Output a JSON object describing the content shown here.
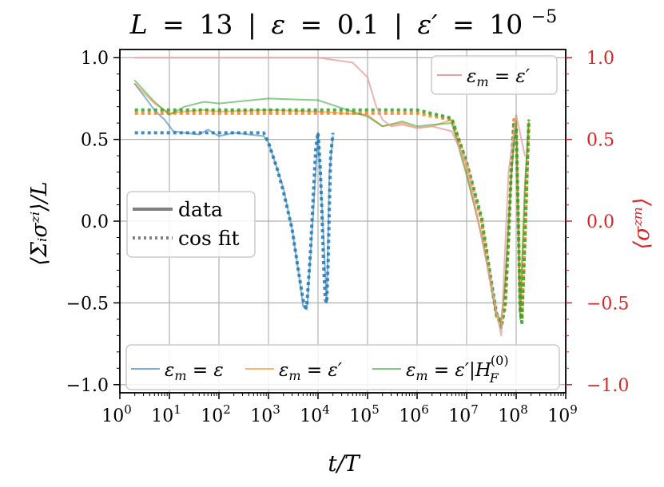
{
  "chart_data": {
    "type": "line",
    "title": {
      "L": "L",
      "eq": "=",
      "L_val": "13",
      "sep": "|",
      "eps": "ε",
      "eps_val": "0.1",
      "eps_prime": "ε′",
      "eps_prime_val": "10",
      "eps_prime_exp": "−5"
    },
    "xlabel": "t/T",
    "ylabel": "⟨Σᵢσᶻⁱ⟩/L",
    "ylabel_right": "⟨σᶻᵐ⟩",
    "x_scale": "log",
    "xlim": [
      1,
      1000000000
    ],
    "ylim": [
      -1.05,
      1.05
    ],
    "ylim_right": [
      -1.05,
      1.05
    ],
    "grid": true,
    "x_ticks": [
      {
        "base": "10",
        "exp": "0",
        "value": 1
      },
      {
        "base": "10",
        "exp": "1",
        "value": 10
      },
      {
        "base": "10",
        "exp": "2",
        "value": 100
      },
      {
        "base": "10",
        "exp": "3",
        "value": 1000
      },
      {
        "base": "10",
        "exp": "4",
        "value": 10000
      },
      {
        "base": "10",
        "exp": "5",
        "value": 100000
      },
      {
        "base": "10",
        "exp": "6",
        "value": 1000000
      },
      {
        "base": "10",
        "exp": "7",
        "value": 10000000
      },
      {
        "base": "10",
        "exp": "8",
        "value": 100000000
      },
      {
        "base": "10",
        "exp": "9",
        "value": 1000000000
      }
    ],
    "y_ticks": [
      {
        "label": "1.0",
        "value": 1.0
      },
      {
        "label": "0.5",
        "value": 0.5
      },
      {
        "label": "0.0",
        "value": 0.0
      },
      {
        "label": "−0.5",
        "value": -0.5
      },
      {
        "label": "−1.0",
        "value": -1.0
      }
    ],
    "y_ticks_right": [
      {
        "label": "1.0",
        "value": 1.0
      },
      {
        "label": "0.5",
        "value": 0.5
      },
      {
        "label": "0.0",
        "value": 0.0
      },
      {
        "label": "−0.5",
        "value": -0.5
      },
      {
        "label": "−1.0",
        "value": -1.0
      }
    ],
    "colors": {
      "blue": "#1f77b4",
      "orange": "#ff7f0e",
      "green": "#2ca02c",
      "red": "#d62728",
      "pink": "#e8a0a0",
      "grid": "#b0b0b0",
      "legend_gray": "#808080"
    },
    "legend_style": {
      "position": "center-left",
      "entries": [
        {
          "label": "data",
          "line": "solid"
        },
        {
          "label": "cos fit",
          "line": "dotted"
        }
      ]
    },
    "legend_series": {
      "position": "bottom",
      "entries": [
        {
          "label": "ε_m = ε",
          "color": "blue"
        },
        {
          "label": "ε_m = ε′",
          "color": "orange"
        },
        {
          "label": "ε_m = ε′|H_F^(0)",
          "color": "green"
        }
      ]
    },
    "legend_right": {
      "position": "top-right",
      "entries": [
        {
          "label": "ε_m = ε′",
          "color": "pink"
        }
      ]
    },
    "series": [
      {
        "name": "ε_m = ε (data)",
        "color": "blue",
        "axis": "left",
        "style": "solid",
        "x": [
          2,
          3,
          5,
          8,
          12,
          20,
          40,
          60,
          100,
          200,
          400,
          800,
          1000,
          1500,
          2000,
          3000,
          4000,
          5000,
          6000,
          8000,
          10000,
          12000,
          15000,
          17000,
          20000
        ],
        "y": [
          0.84,
          0.77,
          0.68,
          0.62,
          0.55,
          0.54,
          0.53,
          0.56,
          0.52,
          0.54,
          0.53,
          0.52,
          0.48,
          0.32,
          0.2,
          -0.05,
          -0.3,
          -0.52,
          -0.54,
          0.05,
          0.54,
          0.1,
          -0.5,
          0.3,
          0.52
        ]
      },
      {
        "name": "ε_m = ε (cos fit)",
        "color": "blue",
        "axis": "left",
        "style": "dotted",
        "x": [
          2,
          100,
          800,
          1000,
          1500,
          2000,
          3000,
          4000,
          5000,
          5600,
          6000,
          7000,
          8000,
          9000,
          10000,
          11000,
          12000,
          13000,
          14000,
          15000,
          16000,
          17000,
          18000,
          20000
        ],
        "y": [
          0.54,
          0.54,
          0.54,
          0.48,
          0.32,
          0.18,
          -0.05,
          -0.3,
          -0.48,
          -0.53,
          -0.5,
          -0.2,
          0.15,
          0.45,
          0.54,
          0.35,
          0.05,
          -0.28,
          -0.48,
          -0.5,
          -0.25,
          0.1,
          0.4,
          0.54
        ]
      },
      {
        "name": "ε_m = ε′ (data)",
        "color": "orange",
        "axis": "left",
        "style": "solid",
        "x": [
          2,
          5,
          10,
          20,
          50,
          100,
          1000,
          10000,
          100000,
          200000,
          500000,
          1000000,
          2000000,
          5000000,
          10000000,
          20000000,
          40000000,
          50000000,
          60000000,
          80000000,
          100000000,
          120000000,
          150000000,
          180000000
        ],
        "y": [
          0.84,
          0.72,
          0.66,
          0.67,
          0.68,
          0.67,
          0.68,
          0.67,
          0.65,
          0.58,
          0.6,
          0.57,
          0.58,
          0.62,
          0.3,
          -0.1,
          -0.55,
          -0.62,
          -0.4,
          0.3,
          0.62,
          -0.55,
          0.2,
          0.6
        ]
      },
      {
        "name": "ε_m = ε′ (cos fit)",
        "color": "orange",
        "axis": "left",
        "style": "dotted",
        "x": [
          2,
          1000000,
          5000000,
          10000000,
          20000000,
          30000000,
          40000000,
          50000000,
          60000000,
          70000000,
          80000000,
          90000000,
          100000000,
          110000000,
          120000000,
          130000000,
          150000000,
          180000000
        ],
        "y": [
          0.66,
          0.66,
          0.62,
          0.35,
          0.0,
          -0.35,
          -0.58,
          -0.64,
          -0.5,
          -0.1,
          0.35,
          0.62,
          0.55,
          0.0,
          -0.55,
          -0.6,
          -0.1,
          0.6
        ]
      },
      {
        "name": "ε_m = ε′|H_F^(0) (data)",
        "color": "green",
        "axis": "left",
        "style": "solid",
        "x": [
          2,
          5,
          10,
          20,
          50,
          100,
          1000,
          10000,
          100000,
          200000,
          500000,
          1000000,
          2000000,
          5000000,
          10000000,
          20000000,
          40000000,
          50000000,
          60000000,
          80000000,
          100000000,
          120000000,
          150000000,
          180000000
        ],
        "y": [
          0.86,
          0.73,
          0.65,
          0.7,
          0.73,
          0.72,
          0.75,
          0.74,
          0.64,
          0.58,
          0.61,
          0.58,
          0.59,
          0.6,
          0.28,
          -0.08,
          -0.58,
          -0.6,
          -0.38,
          0.28,
          0.65,
          -0.6,
          0.22,
          0.62
        ]
      },
      {
        "name": "ε_m = ε′|H_F^(0) (cos fit)",
        "color": "green",
        "axis": "left",
        "style": "dotted",
        "x": [
          2,
          1000000,
          5000000,
          10000000,
          20000000,
          30000000,
          40000000,
          50000000,
          60000000,
          70000000,
          80000000,
          90000000,
          100000000,
          110000000,
          120000000,
          130000000,
          150000000,
          180000000
        ],
        "y": [
          0.68,
          0.68,
          0.63,
          0.36,
          0.02,
          -0.33,
          -0.56,
          -0.65,
          -0.52,
          -0.12,
          0.33,
          0.61,
          0.57,
          0.02,
          -0.53,
          -0.62,
          -0.12,
          0.62
        ]
      },
      {
        "name": "⟨σ_z^m⟩ (ε_m = ε′)",
        "color": "pink",
        "axis": "right",
        "style": "solid",
        "x": [
          2,
          1000,
          10000,
          50000,
          100000,
          150000,
          200000,
          300000,
          500000,
          1000000,
          2000000,
          5000000,
          10000000,
          20000000,
          50000000,
          70000000,
          100000000,
          150000000
        ],
        "y": [
          1.0,
          1.0,
          1.0,
          0.97,
          0.88,
          0.7,
          0.62,
          0.58,
          0.59,
          0.57,
          0.58,
          0.55,
          0.35,
          -0.1,
          -0.7,
          0.3,
          0.65,
          0.4
        ]
      }
    ]
  }
}
